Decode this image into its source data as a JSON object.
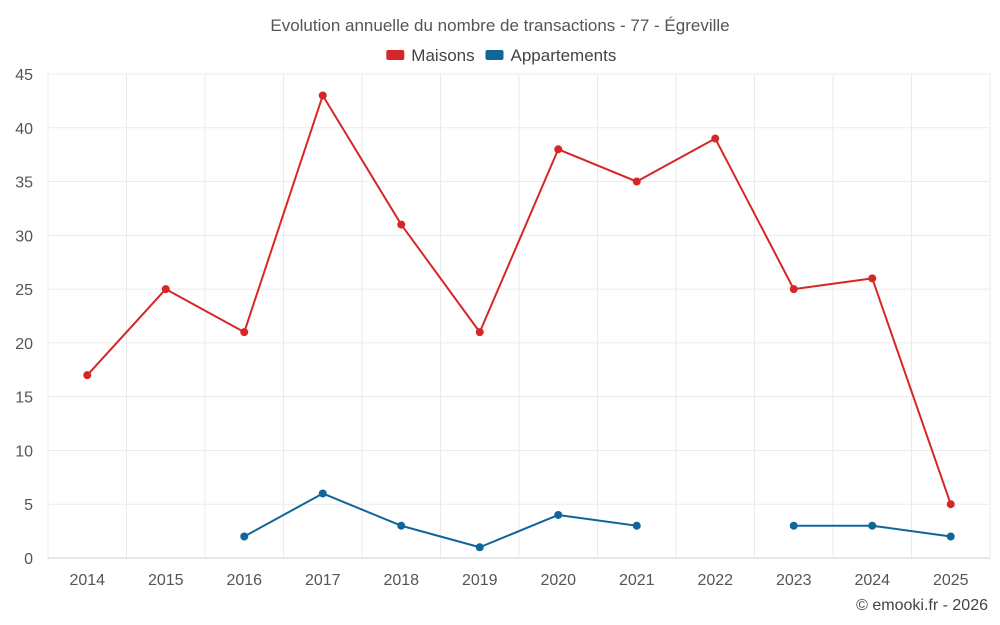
{
  "chart_data": {
    "type": "line",
    "title": "Evolution annuelle du nombre de transactions - 77 - Égreville",
    "categories": [
      "2014",
      "2015",
      "2016",
      "2017",
      "2018",
      "2019",
      "2020",
      "2021",
      "2022",
      "2023",
      "2024",
      "2025"
    ],
    "series": [
      {
        "name": "Maisons",
        "color": "#d62728",
        "values": [
          17,
          25,
          21,
          43,
          31,
          21,
          38,
          35,
          39,
          25,
          26,
          5
        ]
      },
      {
        "name": "Appartements",
        "color": "#0f6699",
        "values": [
          null,
          null,
          2,
          6,
          3,
          1,
          4,
          3,
          null,
          3,
          3,
          2
        ]
      }
    ],
    "ylim": [
      0,
      45
    ],
    "yticks": [
      0,
      5,
      10,
      15,
      20,
      25,
      30,
      35,
      40,
      45
    ],
    "grid": true,
    "legend_position": "top-center",
    "xlabel": "",
    "ylabel": ""
  },
  "credit": "© emooki.fr - 2026"
}
